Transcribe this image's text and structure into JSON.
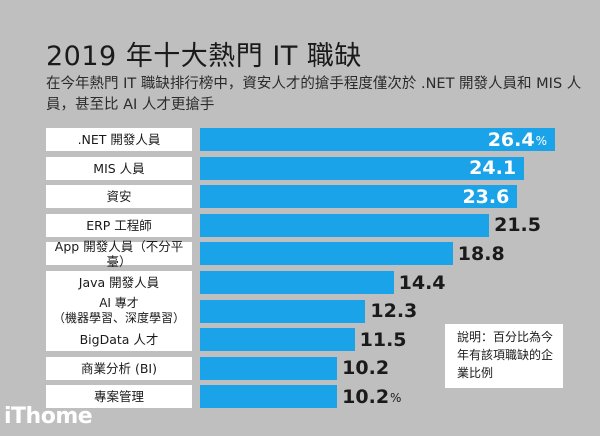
{
  "header": {
    "title": "2019 年十大熱門 IT 職缺",
    "subtitle": "在今年熱門 IT 職缺排行榜中，資安人才的搶手程度僅次於 .NET 開發人員和 MIS 人員，甚至比 AI 人才更搶手"
  },
  "note": "說明：百分比為今年有該項職缺的企業比例",
  "logo": "iThome",
  "colors": {
    "bar": "#1aa3e8",
    "background": "#bfbfbf"
  },
  "chart_data": {
    "type": "bar",
    "orientation": "horizontal",
    "unit": "%",
    "categories": [
      ".NET 開發人員",
      "MIS 人員",
      "資安",
      "ERP 工程師",
      "App 開發人員（不分平臺）",
      "Java 開發人員",
      "AI 專才\n（機器學習、深度學習）",
      "BigData 人才",
      "商業分析 (BI)",
      "專案管理"
    ],
    "values": [
      26.4,
      24.1,
      23.6,
      21.5,
      18.8,
      14.4,
      12.3,
      11.5,
      10.2,
      10.2
    ],
    "labels": [
      "26.4",
      "24.1",
      "23.6",
      "21.5",
      "18.8",
      "14.4",
      "12.3",
      "11.5",
      "10.2",
      "10.2"
    ],
    "unit_shown_on": [
      0,
      9
    ]
  }
}
